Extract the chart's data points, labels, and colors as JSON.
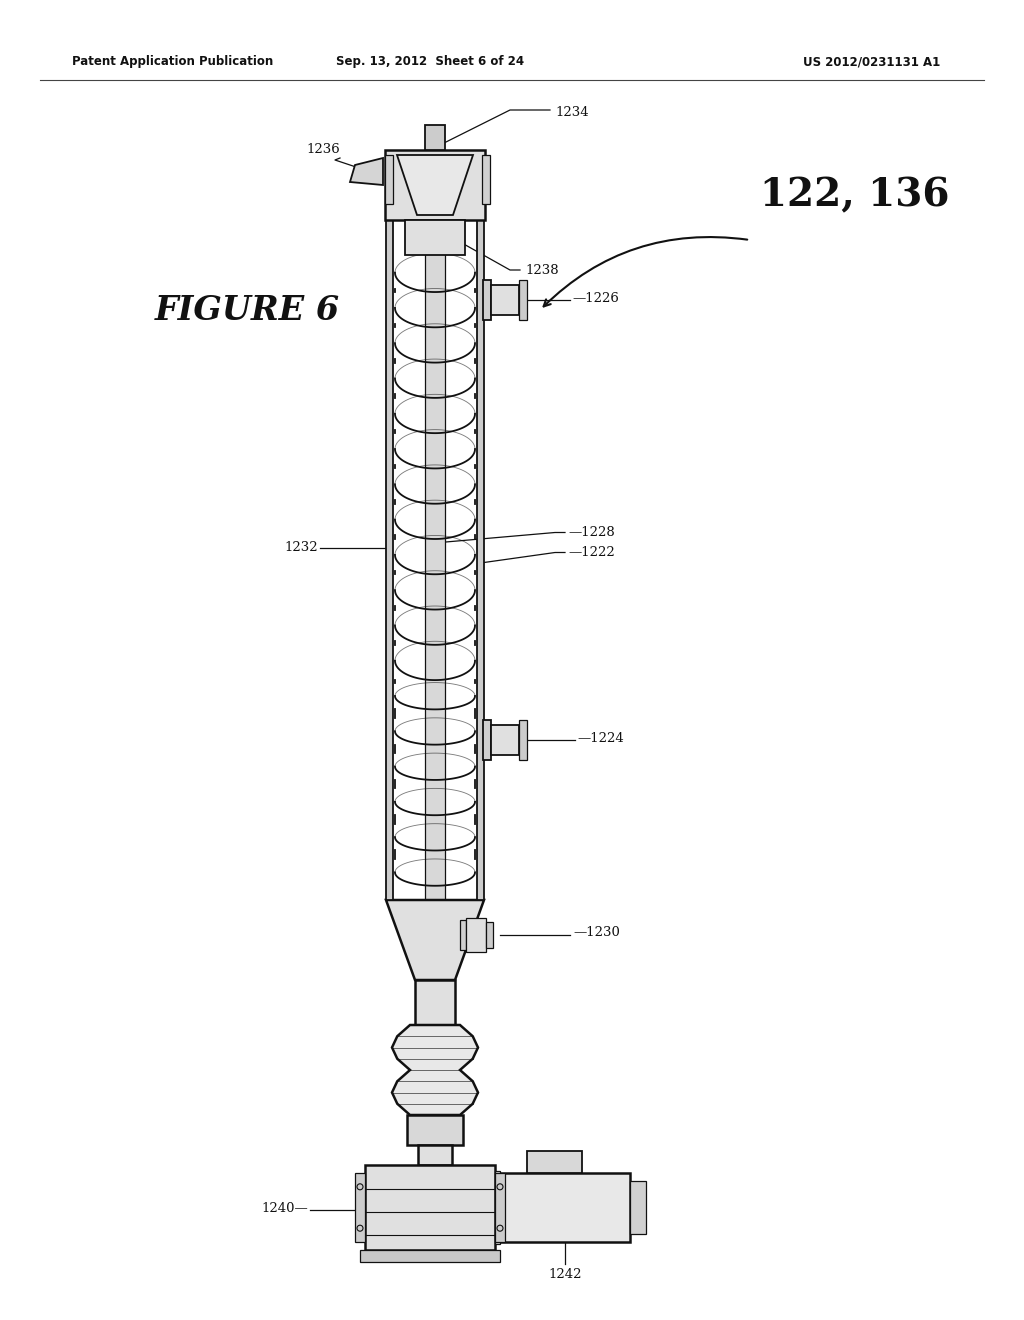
{
  "background_color": "#ffffff",
  "header_left": "Patent Application Publication",
  "header_center": "Sep. 13, 2012  Sheet 6 of 24",
  "header_right": "US 2012/0231131 A1",
  "figure_label": "FIGURE 6",
  "main_label": "122, 136",
  "line_color": "#111111",
  "fig_w": 10.24,
  "fig_h": 13.2,
  "dpi": 100
}
